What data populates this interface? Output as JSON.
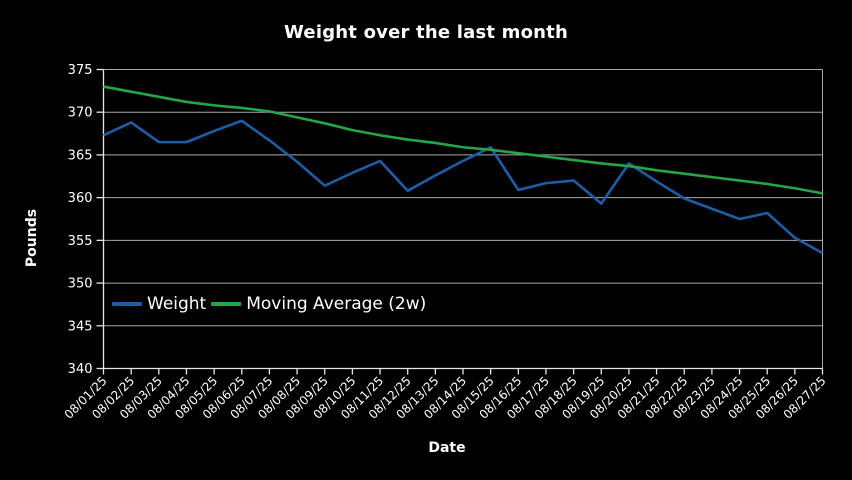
{
  "chart_data": {
    "type": "line",
    "title": "Weight over the last month",
    "xlabel": "Date",
    "ylabel": "Pounds",
    "categories": [
      "08/01/25",
      "08/02/25",
      "08/03/25",
      "08/04/25",
      "08/05/25",
      "08/06/25",
      "08/07/25",
      "08/08/25",
      "08/09/25",
      "08/10/25",
      "08/11/25",
      "08/12/25",
      "08/13/25",
      "08/14/25",
      "08/15/25",
      "08/16/25",
      "08/17/25",
      "08/18/25",
      "08/19/25",
      "08/20/25",
      "08/21/25",
      "08/22/25",
      "08/23/25",
      "08/24/25",
      "08/25/25",
      "08/26/25",
      "08/27/25"
    ],
    "series": [
      {
        "name": "Weight",
        "color": "#1a5fa5",
        "values": [
          367.3,
          368.8,
          366.5,
          366.5,
          367.8,
          369.0,
          366.7,
          364.2,
          361.4,
          362.9,
          364.3,
          360.8,
          362.6,
          364.3,
          365.9,
          360.9,
          361.7,
          362.0,
          359.3,
          364.0,
          361.9,
          359.9,
          358.7,
          357.5,
          358.2,
          355.3,
          353.5
        ]
      },
      {
        "name": "Moving Average (2w)",
        "color": "#24a546",
        "values": [
          373.0,
          372.4,
          371.8,
          371.2,
          370.8,
          370.5,
          370.1,
          369.4,
          368.7,
          367.9,
          367.3,
          366.8,
          366.4,
          365.9,
          365.6,
          365.2,
          364.8,
          364.4,
          364.0,
          363.7,
          363.2,
          362.8,
          362.4,
          362.0,
          361.6,
          361.1,
          360.5
        ]
      }
    ],
    "ylim": [
      340,
      375
    ],
    "yticks": [
      340,
      345,
      350,
      355,
      360,
      365,
      370,
      375
    ],
    "grid": "horizontal",
    "legend_position": "inside-lower-left",
    "colors": {
      "background": "#000000",
      "text": "#ffffff",
      "grid": "#a9a9a9",
      "axis": "#e6e6e6"
    }
  }
}
